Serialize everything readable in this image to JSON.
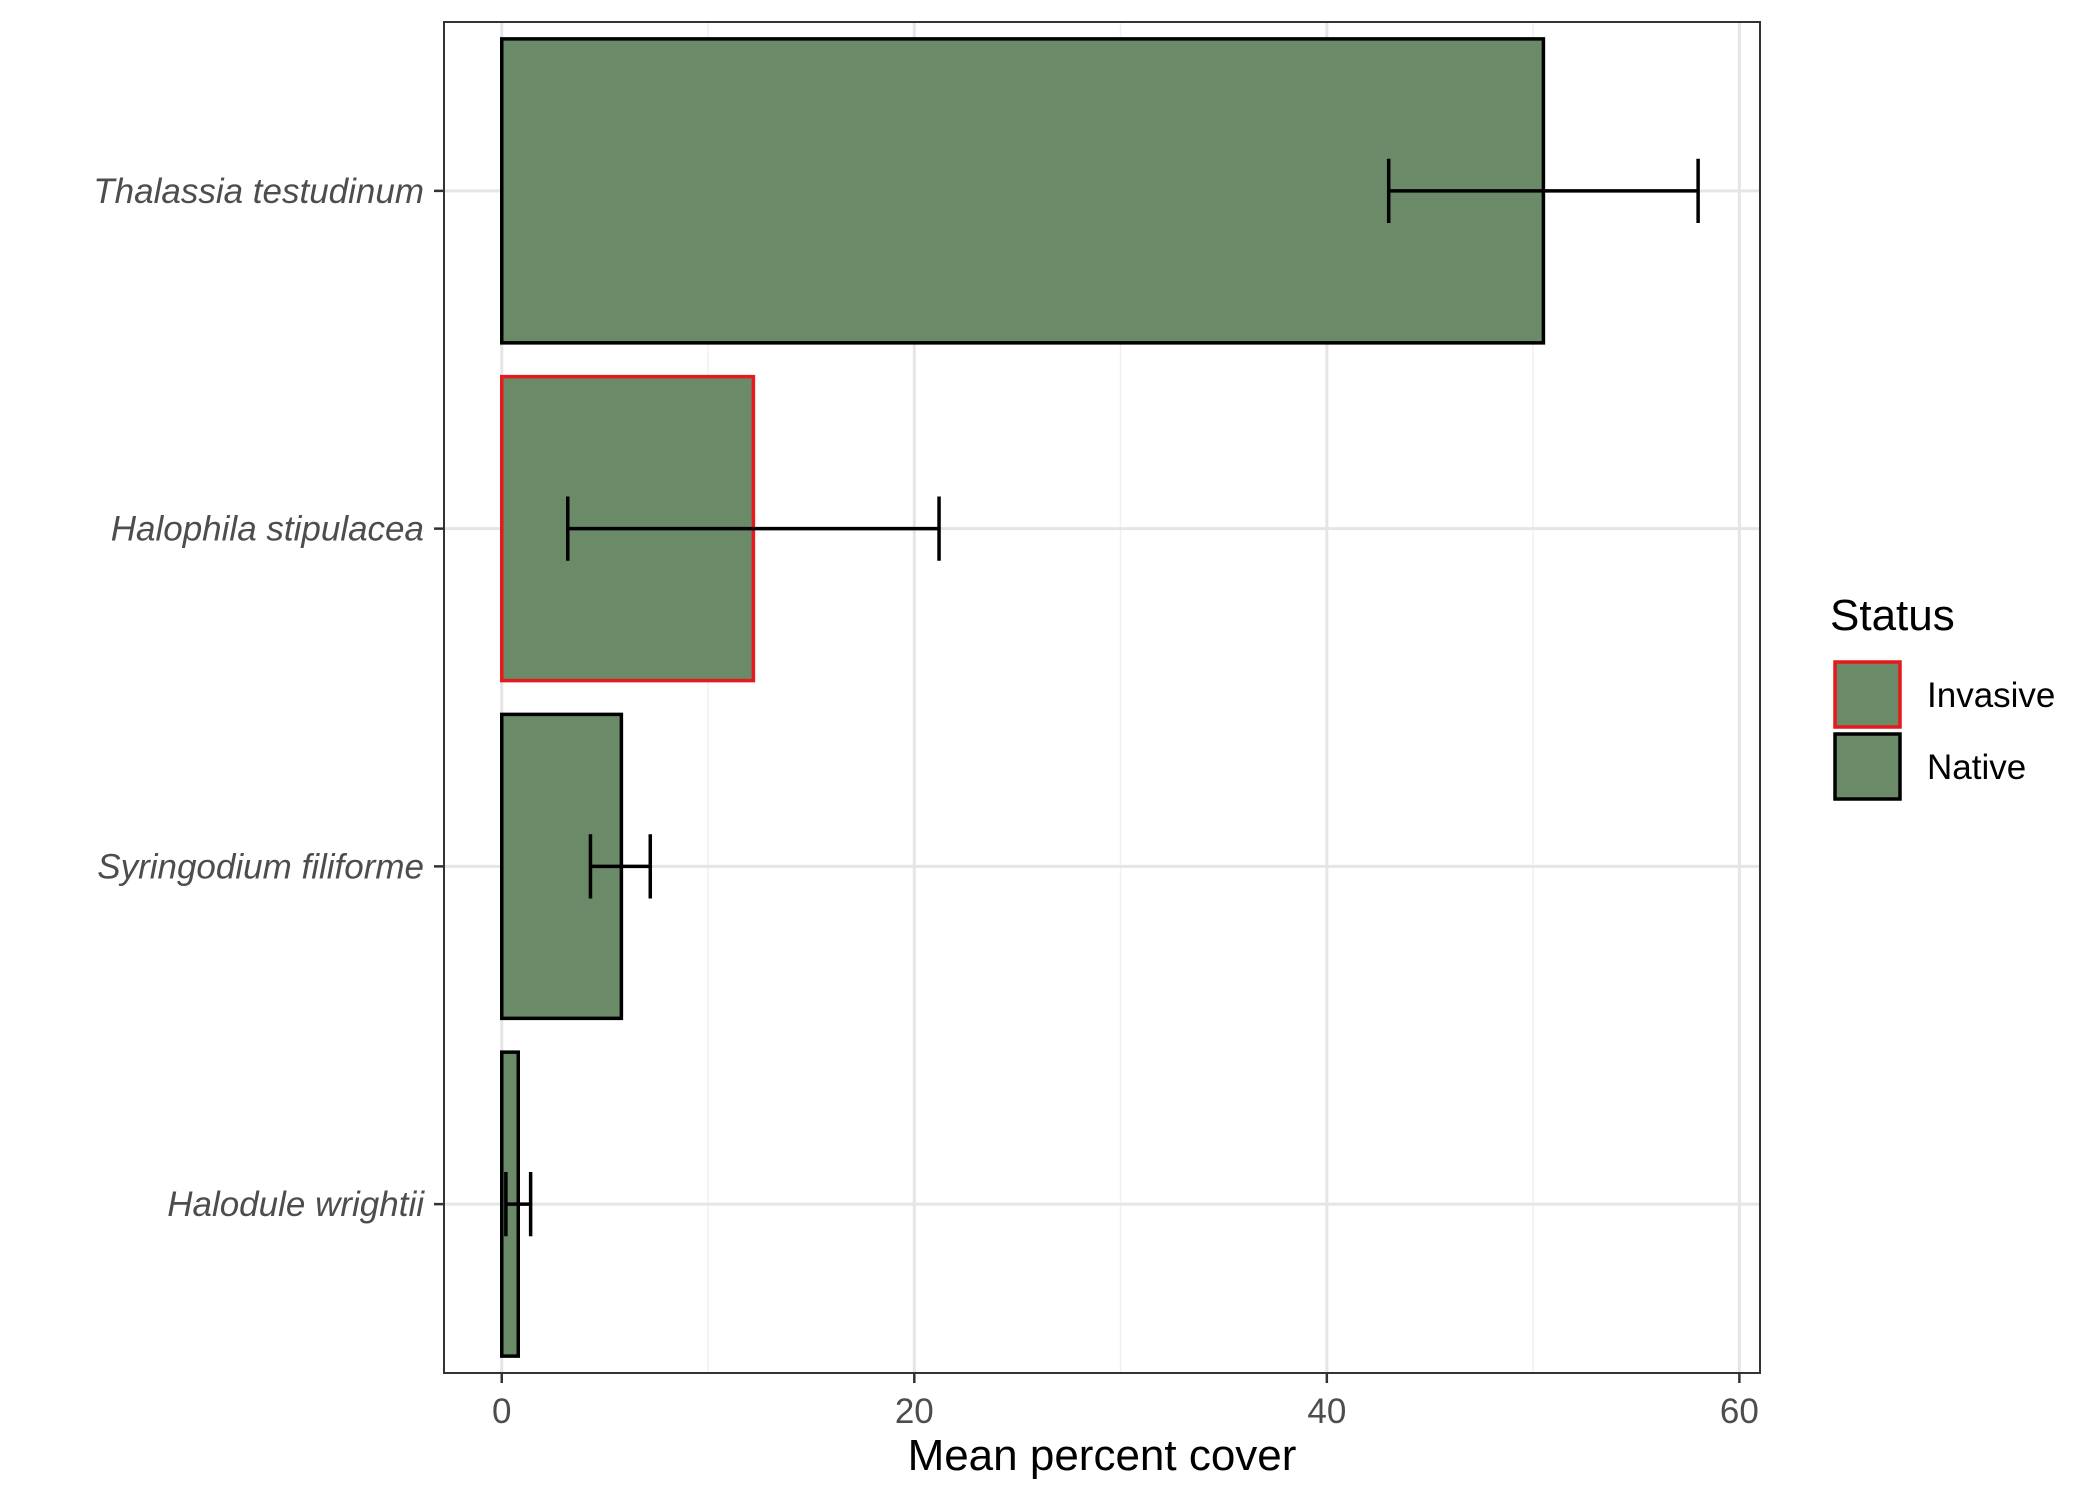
{
  "chart_data": {
    "type": "bar",
    "orientation": "horizontal",
    "xlabel": "Mean percent cover",
    "ylabel": "",
    "xlim": [
      -2.8,
      61
    ],
    "xticks": [
      0,
      20,
      40,
      60
    ],
    "grid": true,
    "categories": [
      "Thalassia testudinum",
      "Halophila stipulacea",
      "Syringodium filiforme",
      "Halodule wrightii"
    ],
    "values": [
      50.5,
      12.2,
      5.8,
      0.8
    ],
    "error_low": [
      43.0,
      3.2,
      4.3,
      0.2
    ],
    "error_high": [
      58.0,
      21.2,
      7.2,
      1.4
    ],
    "status": [
      "Native",
      "Invasive",
      "Native",
      "Native"
    ],
    "fill_color": "#6A8A68",
    "legend": {
      "title": "Status",
      "position": "right",
      "entries": [
        {
          "label": "Invasive",
          "outline": "#E41A1C"
        },
        {
          "label": "Native",
          "outline": "#000000"
        }
      ]
    }
  }
}
